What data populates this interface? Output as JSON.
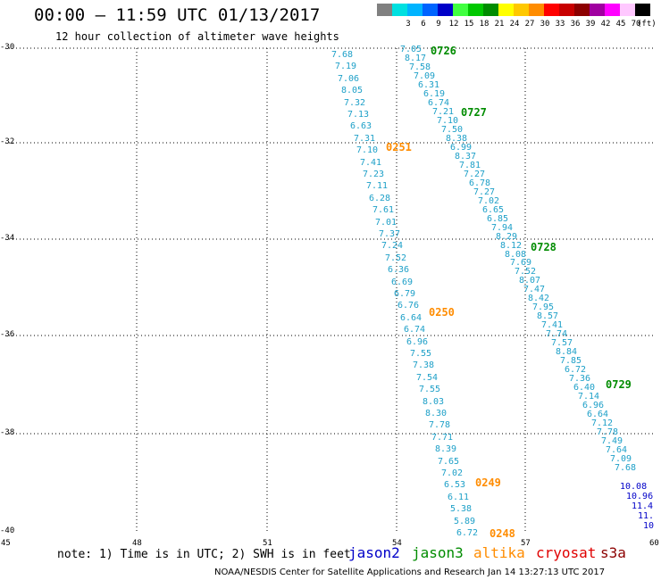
{
  "header": {
    "title": "00:00 – 11:59 UTC 01/13/2017",
    "subtitle": "12 hour collection of altimeter wave heights"
  },
  "color_scale": {
    "unit_label": "(ft)",
    "steps": [
      {
        "label": "",
        "color": "#808080"
      },
      {
        "label": "3",
        "color": "#00e0e0"
      },
      {
        "label": "6",
        "color": "#00b4ff"
      },
      {
        "label": "9",
        "color": "#0064ff"
      },
      {
        "label": "12",
        "color": "#0000c8"
      },
      {
        "label": "15",
        "color": "#40ff40"
      },
      {
        "label": "18",
        "color": "#00c800"
      },
      {
        "label": "21",
        "color": "#008c00"
      },
      {
        "label": "24",
        "color": "#ffff00"
      },
      {
        "label": "27",
        "color": "#ffc800"
      },
      {
        "label": "30",
        "color": "#ff8c00"
      },
      {
        "label": "33",
        "color": "#ff0000"
      },
      {
        "label": "36",
        "color": "#c80000"
      },
      {
        "label": "39",
        "color": "#8c0000"
      },
      {
        "label": "42",
        "color": "#a000a0"
      },
      {
        "label": "45",
        "color": "#ff00ff"
      },
      {
        "label": "70",
        "color": "#ffc8ff"
      },
      {
        "label": "",
        "color": "#000000"
      }
    ]
  },
  "axes": {
    "lat_labels": [
      "-30",
      "-32",
      "-34",
      "-36",
      "-38",
      "-40"
    ],
    "lon_labels": [
      "45",
      "48",
      "51",
      "54",
      "57",
      "60"
    ]
  },
  "tracks": [
    {
      "name": "track-1",
      "color": "#1ea0c8",
      "start": [
        383,
        62
      ],
      "end": [
        523,
        598
      ],
      "values": [
        "7.68",
        "7.19",
        "7.06",
        "8.05",
        "7.32",
        "7.13",
        "6.63",
        "7.31",
        "7.10",
        "7.41",
        "7.23",
        "7.11",
        "6.28",
        "7.61",
        "7.01",
        "7.37",
        "7.24",
        "7.52",
        "6.36",
        "6.69",
        "6.79",
        "6.76",
        "6.64",
        "6.74",
        "6.96",
        "7.55",
        "7.38",
        "7.54",
        "7.55",
        "8.03",
        "8.30",
        "7.78",
        "7.71",
        "8.39",
        "7.65",
        "7.02",
        "6.53",
        "6.11",
        "5.38",
        "5.89",
        "6.72"
      ]
    },
    {
      "name": "track-2",
      "color": "#1ea0c8",
      "start": [
        460,
        56
      ],
      "end": [
        700,
        525
      ],
      "values": [
        "7.05",
        "8.17",
        "7.58",
        "7.09",
        "6.31",
        "6.19",
        "6.74",
        "7.21",
        "7.10",
        "7.50",
        "8.38",
        "6.99",
        "8.37",
        "7.81",
        "7.27",
        "6.78",
        "7.27",
        "7.02",
        "6.65",
        "6.85",
        "7.94",
        "8.29",
        "8.12",
        "8.08",
        "7.69",
        "7.52",
        "8.07",
        "7.47",
        "8.42",
        "7.95",
        "8.57",
        "7.41",
        "7.74",
        "7.57",
        "8.84",
        "7.85",
        "6.72",
        "7.36",
        "6.40",
        "7.14",
        "6.96",
        "6.64",
        "7.12",
        "7.78",
        "7.49",
        "7.64",
        "7.09",
        "7.68"
      ]
    },
    {
      "name": "track-2-tail",
      "color": "#0000c8",
      "start": [
        706,
        546
      ],
      "end": [
        732,
        590
      ],
      "values": [
        "10.08",
        "10.96",
        "11.4",
        "11.",
        "10"
      ]
    }
  ],
  "pass_labels": [
    {
      "text": "0726",
      "color": "#008c00"
    },
    {
      "text": "0727",
      "color": "#008c00"
    },
    {
      "text": "0251",
      "color": "#ff8c00"
    },
    {
      "text": "0728",
      "color": "#008c00"
    },
    {
      "text": "0250",
      "color": "#ff8c00"
    },
    {
      "text": "0729",
      "color": "#008c00"
    },
    {
      "text": "0249",
      "color": "#ff8c00"
    },
    {
      "text": "0248",
      "color": "#ff8c00"
    }
  ],
  "footer": {
    "note": "note: 1) Time is in UTC; 2) SWH is in feet",
    "legend": [
      {
        "name": "jason2",
        "color": "#0000c8"
      },
      {
        "name": "jason3",
        "color": "#008c00"
      },
      {
        "name": "altika",
        "color": "#ff8c00"
      },
      {
        "name": "cryosat",
        "color": "#e00000"
      },
      {
        "name": "s3a",
        "color": "#8c0000"
      }
    ],
    "credit": "NOAA/NESDIS Center for Satellite Applications and Research   Jan 14 13:27:13 UTC 2017"
  }
}
